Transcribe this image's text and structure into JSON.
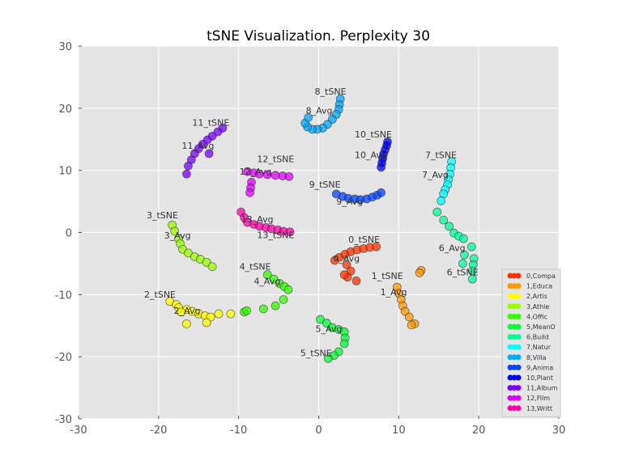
{
  "chart_data": {
    "type": "scatter",
    "title": "tSNE Visualization. Perplexity 30",
    "xlabel": "",
    "ylabel": "",
    "xlim": [
      -30,
      30
    ],
    "ylim": [
      -30,
      30
    ],
    "xticks": [
      -30,
      -20,
      -10,
      0,
      10,
      20,
      30
    ],
    "yticks": [
      -30,
      -20,
      -10,
      0,
      10,
      20,
      30
    ],
    "grid": true,
    "background": "#e5e5e5",
    "legend_position": "bottom-right",
    "series": [
      {
        "name": "0,Compa",
        "color": "#ff3300",
        "points": [
          [
            2.0,
            -4.5
          ],
          [
            2.6,
            -4.0
          ],
          [
            3.3,
            -3.5
          ],
          [
            4.0,
            -3.1
          ],
          [
            4.8,
            -2.8
          ],
          [
            5.6,
            -2.6
          ],
          [
            6.4,
            -2.4
          ],
          [
            7.2,
            -2.3
          ],
          [
            3.5,
            -5.2
          ],
          [
            4.0,
            -6.2
          ],
          [
            3.6,
            -7.2
          ],
          [
            4.7,
            -7.8
          ],
          [
            3.2,
            -6.8
          ]
        ]
      },
      {
        "name": "1,Educa",
        "color": "#ff9900",
        "points": [
          [
            9.8,
            -8.8
          ],
          [
            10.0,
            -9.8
          ],
          [
            10.3,
            -10.8
          ],
          [
            10.5,
            -11.8
          ],
          [
            10.8,
            -12.7
          ],
          [
            11.3,
            -13.6
          ],
          [
            12.0,
            -14.7
          ],
          [
            11.6,
            -14.9
          ],
          [
            12.8,
            -6.1
          ],
          [
            12.6,
            -6.5
          ]
        ]
      },
      {
        "name": "2,Artis",
        "color": "#ffff00",
        "points": [
          [
            -18.6,
            -11.1
          ],
          [
            -17.8,
            -11.6
          ],
          [
            -17.5,
            -12.1
          ],
          [
            -16.5,
            -12.4
          ],
          [
            -15.8,
            -12.7
          ],
          [
            -15.0,
            -13.1
          ],
          [
            -14.2,
            -13.4
          ],
          [
            -13.5,
            -13.6
          ],
          [
            -12.5,
            -13.1
          ],
          [
            -11.0,
            -13.1
          ],
          [
            -16.5,
            -14.7
          ],
          [
            -14.0,
            -14.5
          ],
          [
            -17.2,
            -12.8
          ]
        ]
      },
      {
        "name": "3,Athle",
        "color": "#99ff00",
        "points": [
          [
            -18.3,
            1.2
          ],
          [
            -18.0,
            0.2
          ],
          [
            -17.5,
            -1.0
          ],
          [
            -17.3,
            -1.8
          ],
          [
            -17.0,
            -2.7
          ],
          [
            -16.3,
            -3.3
          ],
          [
            -15.5,
            -3.9
          ],
          [
            -14.8,
            -4.3
          ],
          [
            -14.0,
            -4.8
          ],
          [
            -13.3,
            -5.5
          ]
        ]
      },
      {
        "name": "4,Offic",
        "color": "#33ff00",
        "points": [
          [
            -6.4,
            -6.8
          ],
          [
            -5.6,
            -7.5
          ],
          [
            -4.9,
            -8.2
          ],
          [
            -4.3,
            -8.7
          ],
          [
            -3.8,
            -9.2
          ],
          [
            -4.4,
            -10.8
          ],
          [
            -5.4,
            -11.8
          ],
          [
            -6.9,
            -12.3
          ],
          [
            -9.3,
            -12.8
          ],
          [
            -9.0,
            -12.6
          ]
        ]
      },
      {
        "name": "5,MeanO",
        "color": "#00ff33",
        "points": [
          [
            0.2,
            -14.0
          ],
          [
            1.0,
            -14.6
          ],
          [
            1.7,
            -15.3
          ],
          [
            2.5,
            -15.6
          ],
          [
            3.2,
            -16.0
          ],
          [
            3.3,
            -17.0
          ],
          [
            3.2,
            -17.9
          ],
          [
            2.5,
            -19.2
          ],
          [
            1.9,
            -19.8
          ],
          [
            1.2,
            -20.3
          ]
        ]
      },
      {
        "name": "6,Build",
        "color": "#00ff99",
        "points": [
          [
            14.8,
            3.3
          ],
          [
            15.6,
            2.0
          ],
          [
            16.3,
            1.0
          ],
          [
            16.9,
            -0.1
          ],
          [
            17.5,
            -0.6
          ],
          [
            18.1,
            -1.0
          ],
          [
            19.1,
            -2.3
          ],
          [
            19.4,
            -4.2
          ],
          [
            19.3,
            -5.2
          ],
          [
            19.2,
            -6.2
          ],
          [
            19.2,
            -7.5
          ],
          [
            18.2,
            -3.6
          ],
          [
            18.0,
            -5.0
          ]
        ]
      },
      {
        "name": "7,Natur",
        "color": "#00ffff",
        "points": [
          [
            16.6,
            11.4
          ],
          [
            16.5,
            10.4
          ],
          [
            16.4,
            9.4
          ],
          [
            16.2,
            8.5
          ],
          [
            16.1,
            7.7
          ],
          [
            15.8,
            6.9
          ],
          [
            15.6,
            6.2
          ],
          [
            15.3,
            5.1
          ]
        ]
      },
      {
        "name": "8,Villa",
        "color": "#00aaff",
        "points": [
          [
            2.7,
            21.5
          ],
          [
            2.6,
            20.6
          ],
          [
            2.5,
            19.8
          ],
          [
            2.2,
            19.0
          ],
          [
            1.7,
            18.2
          ],
          [
            1.1,
            17.4
          ],
          [
            0.5,
            16.8
          ],
          [
            -0.2,
            16.6
          ],
          [
            -0.8,
            16.6
          ],
          [
            -1.4,
            17.0
          ],
          [
            -1.7,
            17.6
          ],
          [
            -1.3,
            18.5
          ]
        ]
      },
      {
        "name": "9,Anima",
        "color": "#0044ff",
        "points": [
          [
            2.2,
            6.2
          ],
          [
            3.0,
            5.8
          ],
          [
            3.7,
            5.5
          ],
          [
            4.5,
            5.4
          ],
          [
            5.2,
            5.3
          ],
          [
            6.0,
            5.4
          ],
          [
            6.7,
            5.7
          ],
          [
            7.3,
            6.0
          ],
          [
            7.8,
            6.4
          ]
        ]
      },
      {
        "name": "10,Plant",
        "color": "#0000ff",
        "points": [
          [
            8.6,
            14.6
          ],
          [
            8.5,
            14.0
          ],
          [
            8.3,
            13.3
          ],
          [
            8.1,
            12.6
          ],
          [
            8.0,
            11.9
          ],
          [
            7.9,
            11.2
          ],
          [
            7.8,
            10.5
          ]
        ]
      },
      {
        "name": "11,Album",
        "color": "#7700ff",
        "points": [
          [
            -12.0,
            16.8
          ],
          [
            -12.6,
            16.2
          ],
          [
            -13.3,
            15.5
          ],
          [
            -13.9,
            14.9
          ],
          [
            -14.5,
            14.2
          ],
          [
            -15.0,
            13.5
          ],
          [
            -15.5,
            12.7
          ],
          [
            -15.9,
            11.7
          ],
          [
            -16.3,
            10.7
          ],
          [
            -16.5,
            9.4
          ],
          [
            -13.7,
            12.7
          ]
        ]
      },
      {
        "name": "12,Film",
        "color": "#dd00ff",
        "points": [
          [
            -8.9,
            9.8
          ],
          [
            -8.1,
            9.6
          ],
          [
            -7.4,
            9.4
          ],
          [
            -6.4,
            9.3
          ],
          [
            -5.4,
            9.2
          ],
          [
            -4.5,
            9.1
          ],
          [
            -3.7,
            9.0
          ],
          [
            -8.4,
            8.1
          ],
          [
            -8.5,
            7.2
          ],
          [
            -8.6,
            6.4
          ]
        ]
      },
      {
        "name": "13,Writt",
        "color": "#ff00aa",
        "points": [
          [
            -9.7,
            3.3
          ],
          [
            -9.3,
            2.4
          ],
          [
            -8.9,
            1.6
          ],
          [
            -8.1,
            1.3
          ],
          [
            -7.4,
            1.0
          ],
          [
            -6.6,
            0.8
          ],
          [
            -5.9,
            0.6
          ],
          [
            -5.1,
            0.4
          ],
          [
            -4.4,
            0.2
          ],
          [
            -3.6,
            0.1
          ]
        ]
      }
    ],
    "annotations": [
      {
        "text": "0_tSNE",
        "x": 3.7,
        "y": -1.6
      },
      {
        "text": "0_Avg",
        "x": 1.8,
        "y": -3.0
      },
      {
        "text": "1_tSNE",
        "x": 6.6,
        "y": -7.5
      },
      {
        "text": "1_Avg",
        "x": 7.7,
        "y": -10.1
      },
      {
        "text": "2_tSNE",
        "x": -21.8,
        "y": -10.5
      },
      {
        "text": "2_Avg",
        "x": -18.1,
        "y": -11.4
      },
      {
        "text": "3_tSNE",
        "x": -21.5,
        "y": 2.3
      },
      {
        "text": "3_Avg",
        "x": -19.3,
        "y": -1.0
      },
      {
        "text": "4_tSNE",
        "x": -9.9,
        "y": -6.0
      },
      {
        "text": "4_Avg",
        "x": -8.1,
        "y": -8.3
      },
      {
        "text": "5_Avg",
        "x": -0.4,
        "y": -16.0
      },
      {
        "text": "5_tSNE",
        "x": -2.3,
        "y": -19.9
      },
      {
        "text": "6_Avg",
        "x": 15.0,
        "y": -3.0
      },
      {
        "text": "6_tSNE",
        "x": 16.0,
        "y": -6.9
      },
      {
        "text": "7_tSNE",
        "x": 13.3,
        "y": 12.0
      },
      {
        "text": "7_Avg",
        "x": 12.9,
        "y": 8.8
      },
      {
        "text": "8_tSNE",
        "x": -0.5,
        "y": 22.2
      },
      {
        "text": "8_Avg",
        "x": -1.6,
        "y": 19.1
      },
      {
        "text": "9_tSNE",
        "x": -1.2,
        "y": 7.2
      },
      {
        "text": "9_Avg",
        "x": 2.2,
        "y": 6.2
      },
      {
        "text": "10_tSNE",
        "x": 4.5,
        "y": 15.3
      },
      {
        "text": "10_Avg",
        "x": 4.5,
        "y": 12.0
      },
      {
        "text": "11_tSNE",
        "x": -15.8,
        "y": 17.2
      },
      {
        "text": "11_Avg",
        "x": -17.1,
        "y": 13.5
      },
      {
        "text": "12_Avg",
        "x": -9.9,
        "y": 9.3
      },
      {
        "text": "12_tSNE",
        "x": -7.7,
        "y": 9.6
      },
      {
        "text": "13_Avg",
        "x": -9.7,
        "y": 1.6
      },
      {
        "text": "13_tSNE",
        "x": -7.7,
        "y": 0.8
      }
    ]
  }
}
